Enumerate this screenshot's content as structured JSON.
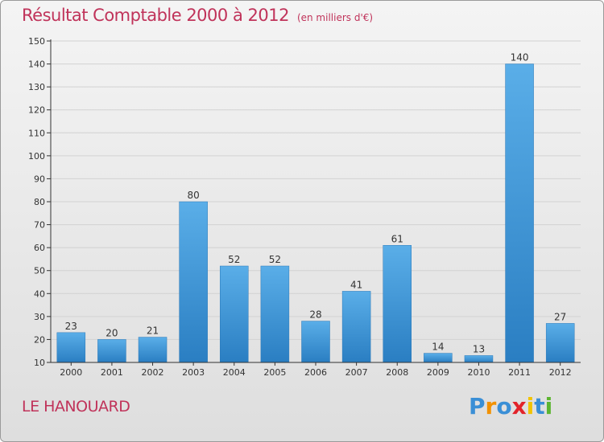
{
  "title": "Résultat Comptable 2000 à 2012",
  "subtitle": "(en milliers d'€)",
  "location": "LE HANOUARD",
  "logo": {
    "text": "Proxiti",
    "colors": [
      "#3a8fd6",
      "#f29100",
      "#3a8fd6",
      "#e2232a",
      "#f2c300",
      "#3a8fd6",
      "#5cb531"
    ]
  },
  "colors": {
    "title": "#c0335a",
    "bar_light": "#5aaee8",
    "bar_dark": "#2a7ec2",
    "axis": "#333333",
    "grid": "#d0d0d0"
  },
  "chart_data": {
    "type": "bar",
    "title": "Résultat Comptable 2000 à 2012",
    "subtitle": "(en milliers d'€)",
    "categories": [
      "2000",
      "2001",
      "2002",
      "2003",
      "2004",
      "2005",
      "2006",
      "2007",
      "2008",
      "2009",
      "2010",
      "2011",
      "2012"
    ],
    "values": [
      23,
      20,
      21,
      80,
      52,
      52,
      28,
      41,
      61,
      14,
      13,
      140,
      27
    ],
    "ylim": [
      10,
      150
    ],
    "yticks": [
      10,
      20,
      30,
      40,
      50,
      60,
      70,
      80,
      90,
      100,
      110,
      120,
      130,
      140,
      150
    ],
    "grid": true,
    "data_labels": true
  }
}
